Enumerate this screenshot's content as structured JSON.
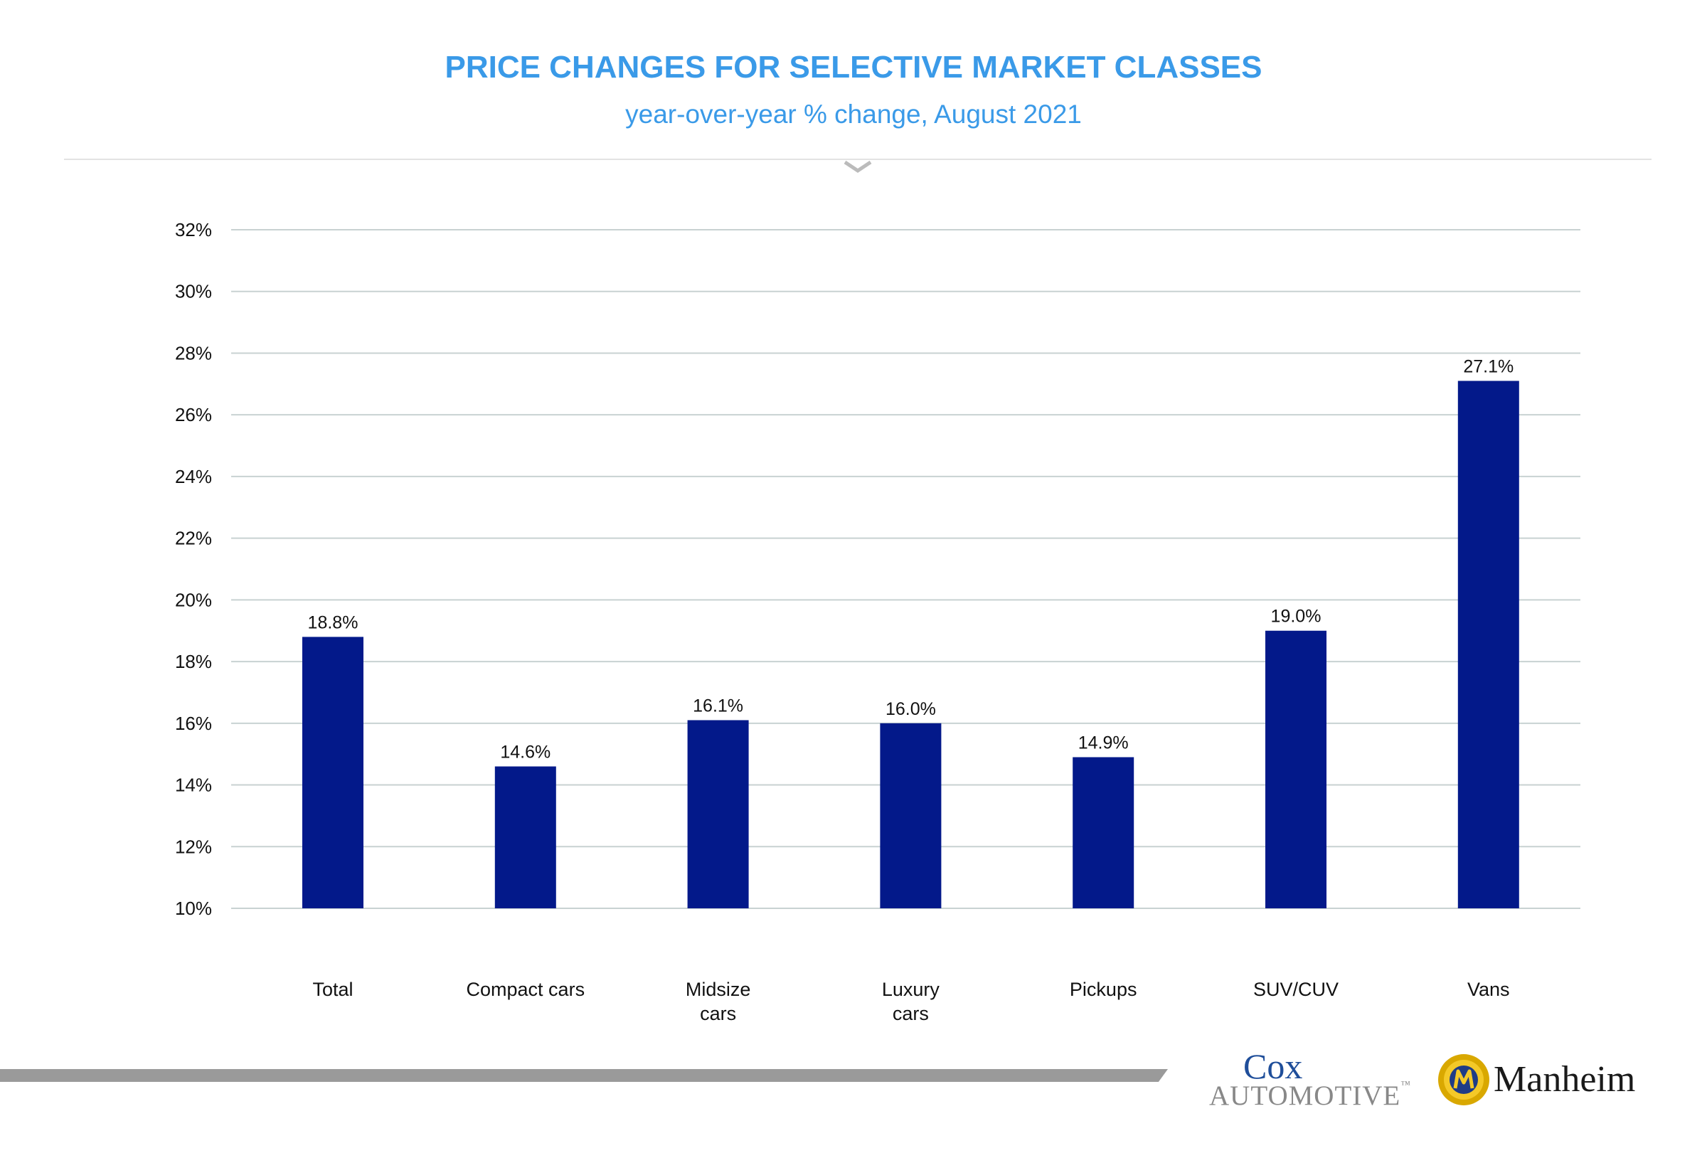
{
  "colors": {
    "accent": "#3a9ae8",
    "bar": "#03198a",
    "grid": "#c8d2d2",
    "footer_bar": "#9a9a9a"
  },
  "chart_data": {
    "type": "bar",
    "title": "PRICE CHANGES FOR SELECTIVE MARKET CLASSES",
    "subtitle": "year-over-year % change, August 2021",
    "categories": [
      [
        "Total"
      ],
      [
        "Compact cars"
      ],
      [
        "Midsize",
        "cars"
      ],
      [
        "Luxury",
        "cars"
      ],
      [
        "Pickups"
      ],
      [
        "SUV/CUV"
      ],
      [
        "Vans"
      ]
    ],
    "values": [
      18.8,
      14.6,
      16.1,
      16.0,
      14.9,
      19.0,
      27.1
    ],
    "data_labels": [
      "18.8%",
      "14.6%",
      "16.1%",
      "16.0%",
      "14.9%",
      "19.0%",
      "27.1%"
    ],
    "ylim": [
      10,
      32
    ],
    "y_ticks": [
      10,
      12,
      14,
      16,
      18,
      20,
      22,
      24,
      26,
      28,
      30,
      32
    ],
    "y_tick_suffix": "%",
    "grid": true,
    "legend": "none"
  },
  "logos": {
    "cox_line1": "Cox",
    "cox_line2": "AUTOMOTIVE",
    "cox_tm": "™",
    "manheim": "Manheim"
  }
}
